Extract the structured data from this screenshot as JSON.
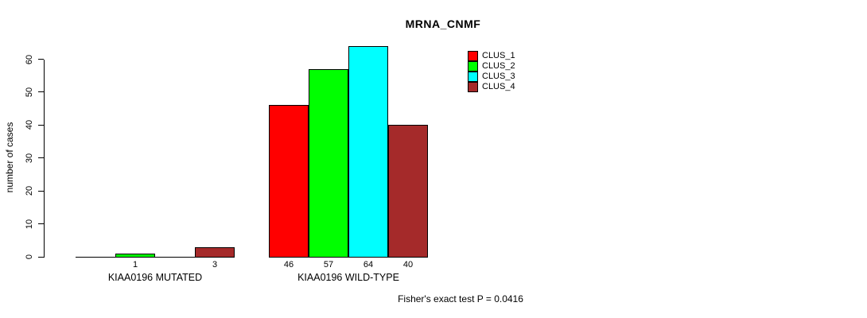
{
  "chart_data": {
    "type": "bar",
    "title": "MRNA_CNMF",
    "ylabel": "number of cases",
    "xlabel": "",
    "ylim": [
      0,
      60
    ],
    "yticks": [
      0,
      10,
      20,
      30,
      40,
      50,
      60
    ],
    "grid": false,
    "legend_position": "top-right",
    "series": [
      {
        "name": "CLUS_1",
        "color": "#FF0000"
      },
      {
        "name": "CLUS_2",
        "color": "#00FF00"
      },
      {
        "name": "CLUS_3",
        "color": "#00FFFF"
      },
      {
        "name": "CLUS_4",
        "color": "#A52A2A"
      }
    ],
    "groups": [
      {
        "label": "KIAA0196 MUTATED",
        "values": [
          0,
          1,
          0,
          3
        ],
        "bar_labels": [
          "",
          "1",
          "",
          "3"
        ]
      },
      {
        "label": "KIAA0196 WILD-TYPE",
        "values": [
          46,
          57,
          64,
          40
        ],
        "bar_labels": [
          "46",
          "57",
          "64",
          "40"
        ]
      }
    ],
    "footnote": "Fisher's exact test P = 0.0416"
  },
  "colors": {
    "axis": "#000000",
    "background": "#FFFFFF",
    "text": "#000000"
  }
}
